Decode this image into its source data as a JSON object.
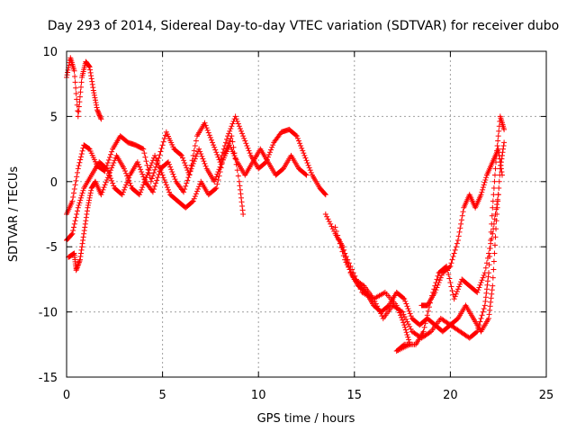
{
  "chart_data": {
    "type": "scatter",
    "title": "Day 293 of 2014, Sidereal Day-to-day VTEC variation (SDTVAR) for receiver dubo",
    "xlabel": "GPS time / hours",
    "ylabel": "SDTVAR / TECUs",
    "xlim": [
      0,
      25
    ],
    "ylim": [
      -15,
      10
    ],
    "xticks": [
      "0",
      "5",
      "10",
      "15",
      "20",
      "25"
    ],
    "yticks": [
      "-15",
      "-10",
      "-5",
      "0",
      "5",
      "10"
    ],
    "grid": true,
    "marker": "+",
    "series_color": "#ff0000",
    "series": [
      {
        "name": "track-1",
        "points": [
          [
            0.0,
            8.0
          ],
          [
            0.2,
            9.5
          ],
          [
            0.4,
            8.5
          ],
          [
            0.6,
            5.0
          ],
          [
            0.8,
            8.0
          ],
          [
            1.0,
            9.2
          ],
          [
            1.2,
            8.8
          ],
          [
            1.4,
            7.0
          ],
          [
            1.6,
            5.5
          ],
          [
            1.8,
            4.8
          ]
        ]
      },
      {
        "name": "track-2",
        "points": [
          [
            0.0,
            -2.5
          ],
          [
            0.3,
            -1.5
          ],
          [
            0.6,
            1.0
          ],
          [
            0.9,
            2.8
          ],
          [
            1.2,
            2.5
          ],
          [
            1.6,
            1.2
          ],
          [
            2.0,
            0.8
          ],
          [
            2.4,
            2.5
          ],
          [
            2.8,
            3.5
          ],
          [
            3.2,
            3.0
          ],
          [
            3.6,
            2.8
          ],
          [
            4.0,
            2.5
          ],
          [
            4.4,
            0.0
          ],
          [
            4.8,
            1.8
          ],
          [
            5.2,
            3.8
          ],
          [
            5.6,
            2.5
          ],
          [
            6.0,
            2.0
          ],
          [
            6.4,
            0.5
          ],
          [
            6.8,
            3.5
          ],
          [
            7.2,
            4.5
          ],
          [
            7.6,
            3.0
          ],
          [
            8.0,
            1.5
          ],
          [
            8.4,
            3.5
          ],
          [
            8.8,
            5.0
          ],
          [
            9.2,
            3.5
          ],
          [
            9.6,
            2.0
          ],
          [
            10.0,
            1.0
          ],
          [
            10.4,
            1.5
          ],
          [
            10.8,
            3.0
          ],
          [
            11.2,
            3.8
          ],
          [
            11.6,
            4.0
          ],
          [
            12.0,
            3.5
          ],
          [
            12.4,
            2.0
          ],
          [
            12.8,
            0.5
          ],
          [
            13.2,
            -0.5
          ],
          [
            13.5,
            -1.0
          ]
        ]
      },
      {
        "name": "track-3",
        "points": [
          [
            0.0,
            -4.5
          ],
          [
            0.3,
            -4.0
          ],
          [
            0.6,
            -2.0
          ],
          [
            0.9,
            -0.5
          ],
          [
            1.3,
            0.5
          ],
          [
            1.7,
            1.5
          ],
          [
            2.1,
            1.0
          ],
          [
            2.5,
            -0.5
          ],
          [
            2.9,
            -1.0
          ],
          [
            3.3,
            0.5
          ],
          [
            3.7,
            1.5
          ],
          [
            4.1,
            0.0
          ],
          [
            4.5,
            -0.8
          ],
          [
            4.9,
            1.0
          ],
          [
            5.3,
            1.5
          ],
          [
            5.7,
            0.0
          ],
          [
            6.1,
            -0.8
          ],
          [
            6.5,
            1.0
          ],
          [
            6.9,
            2.5
          ],
          [
            7.3,
            1.0
          ],
          [
            7.7,
            0.0
          ],
          [
            8.1,
            1.5
          ],
          [
            8.5,
            2.8
          ],
          [
            8.9,
            1.5
          ],
          [
            9.3,
            0.5
          ],
          [
            9.7,
            1.5
          ],
          [
            10.1,
            2.5
          ],
          [
            10.5,
            1.5
          ],
          [
            10.9,
            0.5
          ],
          [
            11.3,
            1.0
          ],
          [
            11.7,
            2.0
          ],
          [
            12.1,
            1.0
          ],
          [
            12.5,
            0.5
          ]
        ]
      },
      {
        "name": "track-4",
        "points": [
          [
            0.1,
            -5.8
          ],
          [
            0.4,
            -5.5
          ],
          [
            0.5,
            -6.8
          ],
          [
            0.7,
            -6.0
          ],
          [
            0.9,
            -4.0
          ],
          [
            1.1,
            -2.0
          ],
          [
            1.3,
            -0.5
          ],
          [
            1.5,
            0.0
          ],
          [
            1.8,
            -1.0
          ],
          [
            2.2,
            0.5
          ],
          [
            2.6,
            2.0
          ],
          [
            3.0,
            1.0
          ],
          [
            3.4,
            -0.5
          ],
          [
            3.8,
            -1.0
          ],
          [
            4.2,
            0.5
          ],
          [
            4.6,
            2.0
          ],
          [
            5.0,
            0.5
          ],
          [
            5.4,
            -1.0
          ],
          [
            5.8,
            -1.5
          ],
          [
            6.2,
            -2.0
          ],
          [
            6.6,
            -1.5
          ],
          [
            7.0,
            0.0
          ],
          [
            7.4,
            -1.0
          ],
          [
            7.8,
            -0.5
          ],
          [
            8.2,
            2.0
          ],
          [
            8.6,
            3.5
          ],
          [
            9.0,
            0.0
          ],
          [
            9.2,
            -2.5
          ]
        ]
      },
      {
        "name": "track-5",
        "points": [
          [
            13.5,
            -2.5
          ],
          [
            14.0,
            -4.0
          ],
          [
            14.4,
            -5.0
          ],
          [
            14.8,
            -7.0
          ],
          [
            15.2,
            -8.0
          ],
          [
            15.6,
            -8.5
          ],
          [
            16.0,
            -9.5
          ],
          [
            16.4,
            -10.0
          ],
          [
            16.8,
            -9.5
          ],
          [
            17.2,
            -8.5
          ],
          [
            17.6,
            -9.0
          ],
          [
            18.0,
            -10.5
          ],
          [
            18.4,
            -11.0
          ],
          [
            18.8,
            -10.5
          ],
          [
            19.2,
            -11.0
          ],
          [
            19.6,
            -11.5
          ],
          [
            20.0,
            -11.0
          ],
          [
            20.4,
            -10.5
          ],
          [
            20.8,
            -9.5
          ],
          [
            21.2,
            -10.5
          ],
          [
            21.6,
            -11.5
          ],
          [
            22.0,
            -10.5
          ],
          [
            22.2,
            -8.0
          ],
          [
            22.4,
            -3.0
          ],
          [
            22.6,
            1.0
          ],
          [
            22.8,
            3.0
          ]
        ]
      },
      {
        "name": "track-6",
        "points": [
          [
            14.0,
            -3.5
          ],
          [
            14.5,
            -6.0
          ],
          [
            15.0,
            -7.5
          ],
          [
            15.5,
            -8.0
          ],
          [
            16.0,
            -9.0
          ],
          [
            16.5,
            -10.5
          ],
          [
            17.0,
            -9.5
          ],
          [
            17.5,
            -10.0
          ],
          [
            18.0,
            -11.5
          ],
          [
            18.5,
            -12.0
          ],
          [
            19.0,
            -11.5
          ],
          [
            19.5,
            -10.5
          ],
          [
            20.0,
            -11.0
          ],
          [
            20.5,
            -11.5
          ],
          [
            21.0,
            -12.0
          ],
          [
            21.4,
            -11.5
          ],
          [
            21.8,
            -9.5
          ],
          [
            22.0,
            -7.0
          ],
          [
            22.2,
            -2.0
          ],
          [
            22.4,
            2.0
          ],
          [
            22.6,
            5.0
          ],
          [
            22.8,
            4.0
          ]
        ]
      },
      {
        "name": "track-7",
        "points": [
          [
            14.2,
            -4.5
          ],
          [
            14.8,
            -6.5
          ],
          [
            15.4,
            -8.5
          ],
          [
            16.0,
            -9.0
          ],
          [
            16.6,
            -8.5
          ],
          [
            17.2,
            -9.5
          ],
          [
            17.6,
            -11.0
          ],
          [
            17.9,
            -12.5
          ],
          [
            17.2,
            -13.0
          ],
          [
            17.6,
            -12.5
          ],
          [
            18.2,
            -12.5
          ],
          [
            18.6,
            -11.5
          ],
          [
            19.0,
            -9.0
          ],
          [
            19.4,
            -7.0
          ],
          [
            19.8,
            -6.5
          ],
          [
            20.2,
            -9.0
          ],
          [
            20.6,
            -7.5
          ],
          [
            21.0,
            -8.0
          ],
          [
            21.4,
            -8.5
          ],
          [
            21.8,
            -7.0
          ],
          [
            22.2,
            -4.0
          ],
          [
            22.5,
            -1.0
          ]
        ]
      },
      {
        "name": "track-8",
        "points": [
          [
            18.5,
            -9.5
          ],
          [
            18.8,
            -9.5
          ],
          [
            19.2,
            -8.5
          ],
          [
            19.6,
            -7.0
          ],
          [
            20.0,
            -6.5
          ],
          [
            20.4,
            -4.5
          ],
          [
            20.7,
            -2.0
          ],
          [
            21.0,
            -1.0
          ],
          [
            21.3,
            -2.0
          ],
          [
            21.6,
            -1.0
          ],
          [
            21.9,
            0.5
          ],
          [
            22.2,
            1.5
          ],
          [
            22.5,
            2.5
          ],
          [
            22.7,
            0.5
          ]
        ]
      }
    ]
  }
}
